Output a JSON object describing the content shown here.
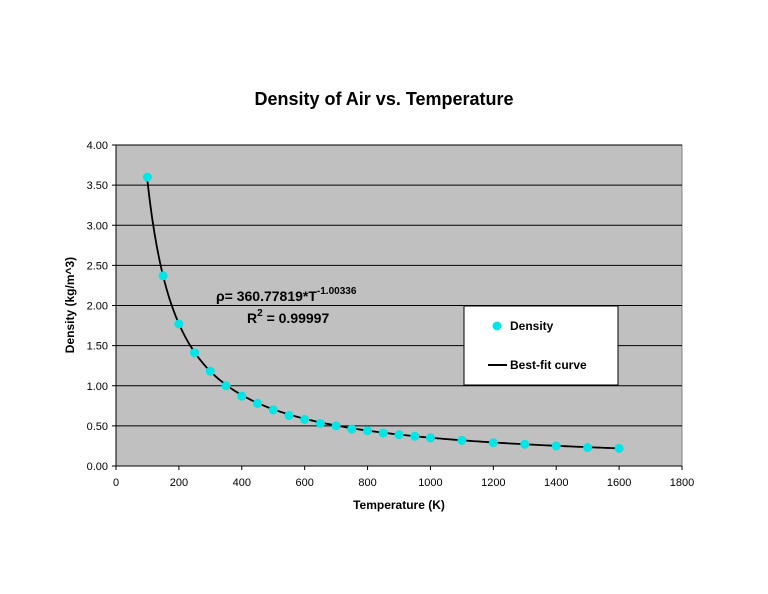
{
  "chart_data": {
    "type": "scatter",
    "title": "Density of Air vs. Temperature",
    "xlabel": "Temperature (K)",
    "ylabel": "Density (kg/m^3)",
    "xlim": [
      0,
      1800
    ],
    "ylim": [
      0,
      4
    ],
    "x_ticks": [
      "0",
      "200",
      "400",
      "600",
      "800",
      "1000",
      "1200",
      "1400",
      "1600",
      "1800"
    ],
    "y_ticks": [
      "0.00",
      "0.50",
      "1.00",
      "1.50",
      "2.00",
      "2.50",
      "3.00",
      "3.50",
      "4.00"
    ],
    "grid": "horizontal",
    "background_color": "#c0c0c0",
    "series": [
      {
        "name": "Density",
        "kind": "scatter",
        "color": "#00e5e5",
        "x": [
          100,
          150,
          200,
          250,
          300,
          350,
          400,
          450,
          500,
          550,
          600,
          650,
          700,
          750,
          800,
          850,
          900,
          950,
          1000,
          1100,
          1200,
          1300,
          1400,
          1500,
          1600
        ],
        "y": [
          3.6,
          2.37,
          1.77,
          1.41,
          1.18,
          1.0,
          0.87,
          0.78,
          0.7,
          0.63,
          0.58,
          0.53,
          0.5,
          0.46,
          0.44,
          0.41,
          0.39,
          0.37,
          0.35,
          0.32,
          0.29,
          0.27,
          0.25,
          0.23,
          0.22
        ]
      },
      {
        "name": "Best-fit curve",
        "kind": "line",
        "color": "#000000",
        "fit": {
          "coefficient": 360.77819,
          "exponent": -1.00336,
          "x_from": 100,
          "x_to": 1600
        }
      }
    ],
    "legend": {
      "position": "right",
      "entries": [
        "Density",
        "Best-fit curve"
      ]
    },
    "annotation": {
      "equation_prefix": "ρ= 360.77819*T",
      "equation_exponent": "-1.00336",
      "r2_prefix": "R",
      "r2_exponent": "2",
      "r2_value": " = 0.99997"
    }
  }
}
